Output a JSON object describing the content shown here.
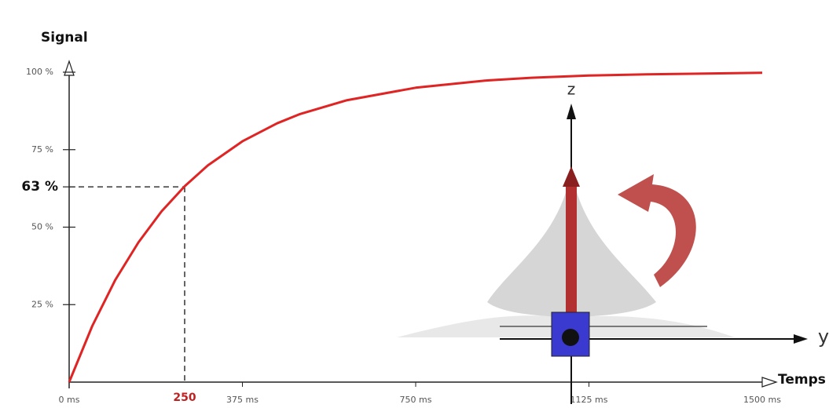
{
  "chart_data": {
    "type": "line",
    "y_label": "Signal",
    "x_label": "Temps",
    "x": [
      0,
      50,
      100,
      150,
      200,
      250,
      300,
      375,
      450,
      500,
      600,
      750,
      900,
      1000,
      1125,
      1250,
      1500
    ],
    "values": [
      0,
      18.1,
      33.0,
      45.1,
      55.1,
      63.2,
      69.9,
      77.7,
      83.5,
      86.5,
      90.9,
      95.0,
      97.3,
      98.2,
      98.9,
      99.3,
      99.8
    ],
    "color": "#e02424",
    "xlim": [
      0,
      1500
    ],
    "ylim": [
      0,
      100
    ],
    "xticks": [
      {
        "value": 0,
        "label": "0 ms"
      },
      {
        "value": 375,
        "label": "375 ms"
      },
      {
        "value": 750,
        "label": "750 ms"
      },
      {
        "value": 1125,
        "label": "1125 ms"
      },
      {
        "value": 1500,
        "label": "1500 ms"
      }
    ],
    "yticks": [
      {
        "value": 25,
        "label": "25 %"
      },
      {
        "value": 50,
        "label": "50 %"
      },
      {
        "value": 75,
        "label": "75 %"
      },
      {
        "value": 100,
        "label": "100 %"
      }
    ],
    "marker": {
      "x": 250,
      "y": 63,
      "x_label": "250",
      "y_label": "63 %"
    },
    "annotations": [
      "z",
      "y"
    ]
  }
}
